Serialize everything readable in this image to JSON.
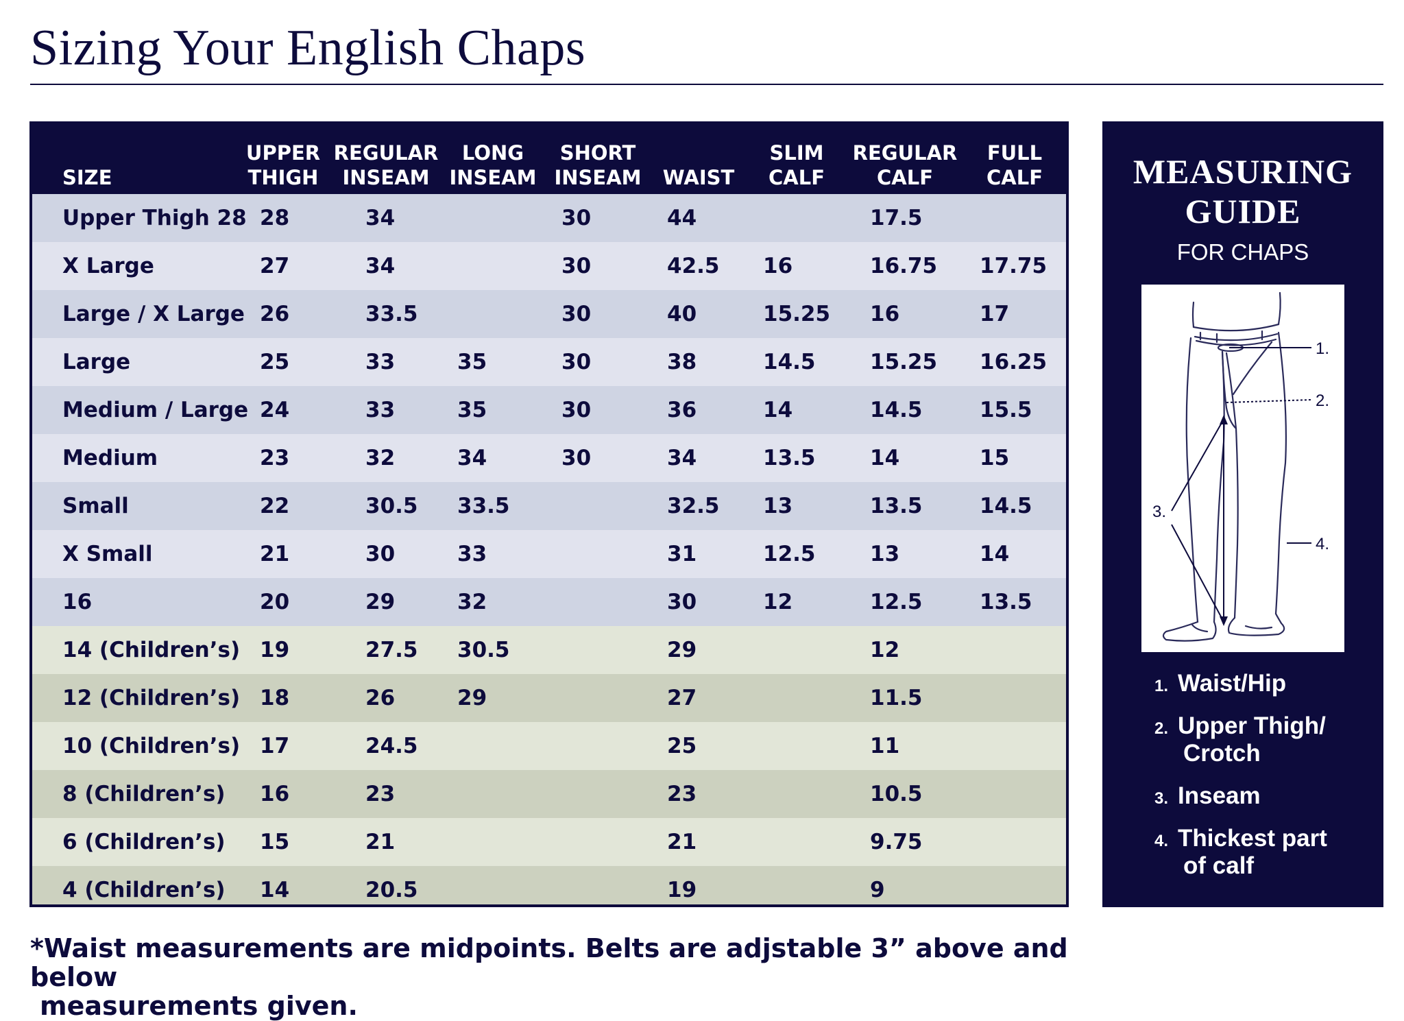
{
  "title": "Sizing Your English Chaps",
  "table": {
    "headers": [
      {
        "line1": "",
        "line2": "SIZE"
      },
      {
        "line1": "UPPER",
        "line2": "THIGH"
      },
      {
        "line1": "REGULAR",
        "line2": "INSEAM"
      },
      {
        "line1": "LONG",
        "line2": "INSEAM"
      },
      {
        "line1": "SHORT",
        "line2": "INSEAM"
      },
      {
        "line1": "",
        "line2": "WAIST"
      },
      {
        "line1": "SLIM",
        "line2": "CALF"
      },
      {
        "line1": "REGULAR",
        "line2": "CALF"
      },
      {
        "line1": "FULL",
        "line2": "CALF"
      }
    ],
    "rows": [
      {
        "group": "adult",
        "cells": [
          "Upper Thigh 28",
          "28",
          "34",
          "",
          "30",
          "44",
          "",
          "17.5",
          ""
        ]
      },
      {
        "group": "adult",
        "cells": [
          "X Large",
          "27",
          "34",
          "",
          "30",
          "42.5",
          "16",
          "16.75",
          "17.75"
        ]
      },
      {
        "group": "adult",
        "cells": [
          "Large / X Large",
          "26",
          "33.5",
          "",
          "30",
          "40",
          "15.25",
          "16",
          "17"
        ]
      },
      {
        "group": "adult",
        "cells": [
          "Large",
          "25",
          "33",
          "35",
          "30",
          "38",
          "14.5",
          "15.25",
          "16.25"
        ]
      },
      {
        "group": "adult",
        "cells": [
          "Medium / Large",
          "24",
          "33",
          "35",
          "30",
          "36",
          "14",
          "14.5",
          "15.5"
        ]
      },
      {
        "group": "adult",
        "cells": [
          "Medium",
          "23",
          "32",
          "34",
          "30",
          "34",
          "13.5",
          "14",
          "15"
        ]
      },
      {
        "group": "adult",
        "cells": [
          "Small",
          "22",
          "30.5",
          "33.5",
          "",
          "32.5",
          "13",
          "13.5",
          "14.5"
        ]
      },
      {
        "group": "adult",
        "cells": [
          "X Small",
          "21",
          "30",
          "33",
          "",
          "31",
          "12.5",
          "13",
          "14"
        ]
      },
      {
        "group": "adult",
        "cells": [
          "16",
          "20",
          "29",
          "32",
          "",
          "30",
          "12",
          "12.5",
          "13.5"
        ]
      },
      {
        "group": "child",
        "cells": [
          "14 (Children’s)",
          "19",
          "27.5",
          "30.5",
          "",
          "29",
          "",
          "12",
          ""
        ]
      },
      {
        "group": "child",
        "cells": [
          "12 (Children’s)",
          "18",
          "26",
          "29",
          "",
          "27",
          "",
          "11.5",
          ""
        ]
      },
      {
        "group": "child",
        "cells": [
          "10 (Children’s)",
          "17",
          "24.5",
          "",
          "",
          "25",
          "",
          "11",
          ""
        ]
      },
      {
        "group": "child",
        "cells": [
          "8 (Children’s)",
          "16",
          "23",
          "",
          "",
          "23",
          "",
          "10.5",
          ""
        ]
      },
      {
        "group": "child",
        "cells": [
          "6 (Children’s)",
          "15",
          "21",
          "",
          "",
          "21",
          "",
          "9.75",
          ""
        ]
      },
      {
        "group": "child",
        "cells": [
          "4 (Children’s)",
          "14",
          "20.5",
          "",
          "",
          "19",
          "",
          "9",
          ""
        ]
      }
    ]
  },
  "footnote": {
    "line1": "*Waist measurements are midpoints. Belts are adjstable 3” above and below",
    "line2": "measurements given."
  },
  "guide": {
    "title_line1": "MEASURING",
    "title_line2": "GUIDE",
    "subtitle": "FOR CHAPS",
    "diagram_labels": [
      "1.",
      "2.",
      "3.",
      "4."
    ],
    "items": [
      {
        "num": "1.",
        "line1": "Waist/Hip",
        "line2": ""
      },
      {
        "num": "2.",
        "line1": "Upper Thigh/",
        "line2": "Crotch"
      },
      {
        "num": "3.",
        "line1": "Inseam",
        "line2": ""
      },
      {
        "num": "4.",
        "line1": "Thickest part",
        "line2": "of calf"
      }
    ]
  },
  "colors": {
    "navy": "#0d0b3c",
    "adult_row_dark": "#cfd4e3",
    "adult_row_light": "#e1e3ee",
    "child_row_dark": "#ccd1bf",
    "child_row_light": "#e2e6d8"
  }
}
